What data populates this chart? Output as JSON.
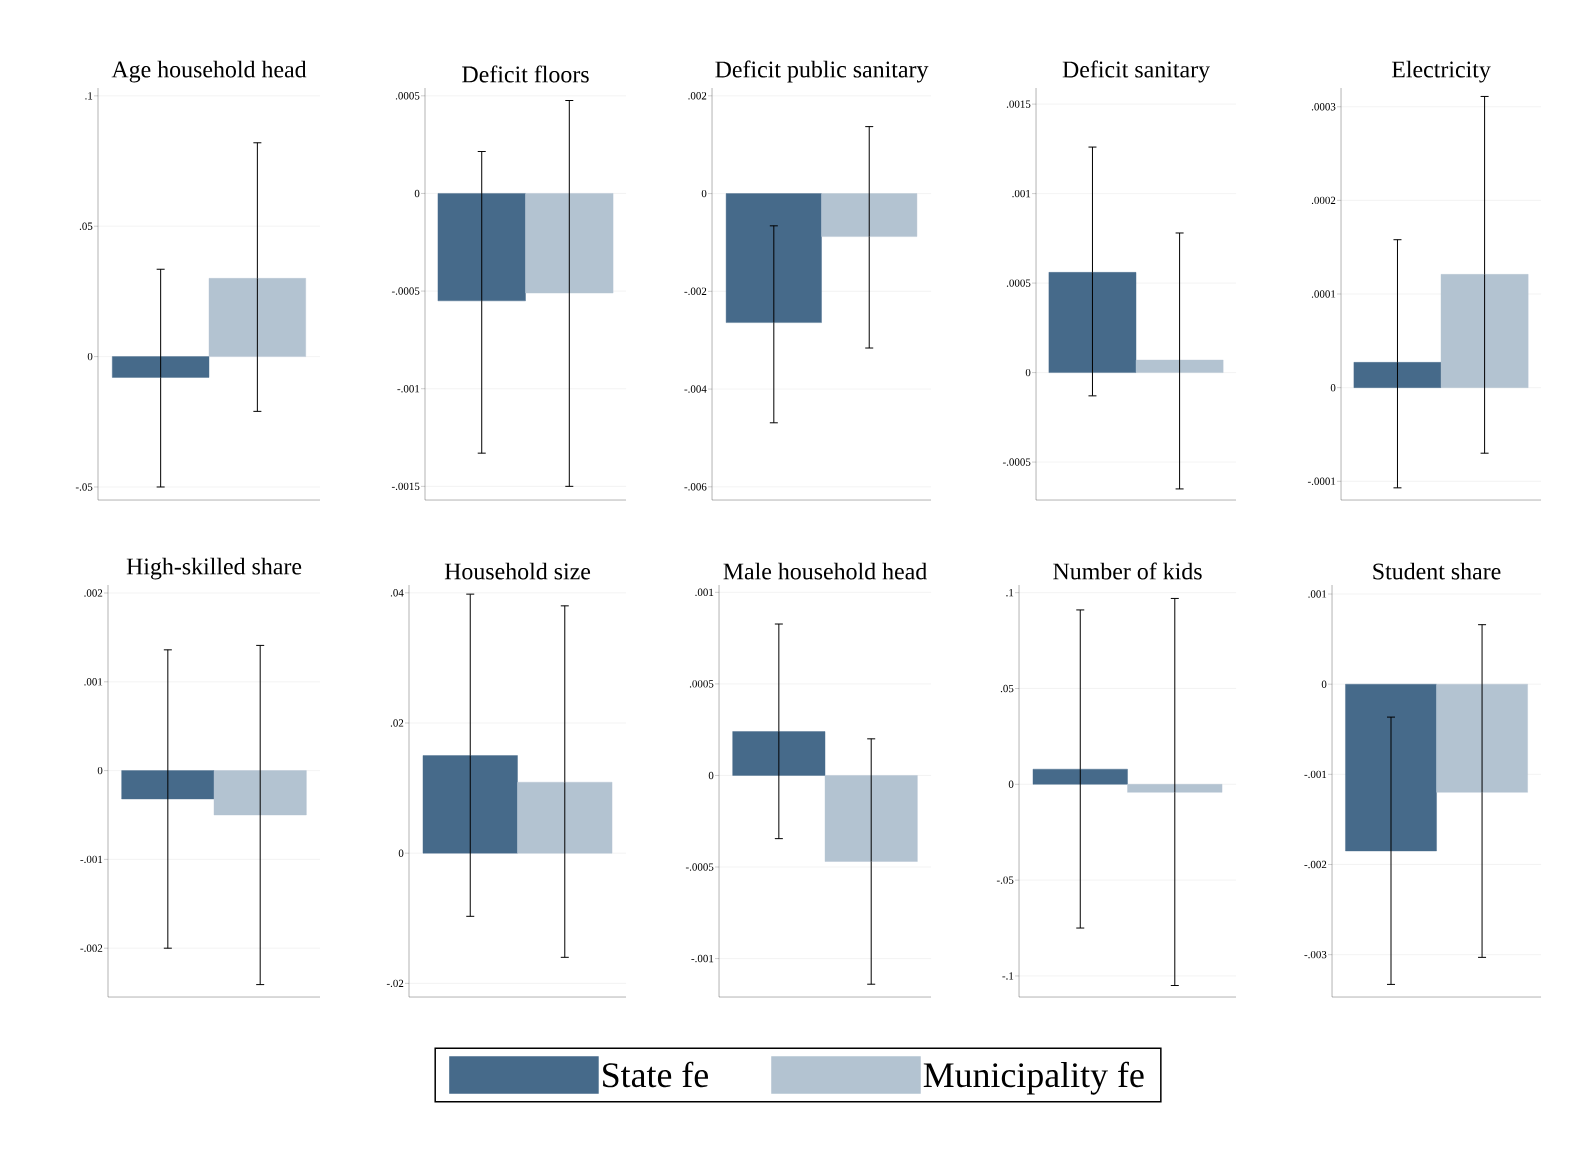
{
  "chart_data": [
    {
      "type": "bar",
      "title": "Age household head",
      "categories": [
        null
      ],
      "grid": "y",
      "legend": "bottom",
      "ylim": [
        -0.055,
        0.103
      ],
      "yticks": [
        {
          "value": -0.05,
          "label": "-.05"
        },
        0,
        {
          "value": 0.05,
          "label": ".05"
        },
        {
          "value": 0.1,
          "label": ".1"
        }
      ],
      "series": [
        {
          "name": "State fe",
          "color": "#466a8a",
          "values": [
            -0.008
          ],
          "errors": [
            [
              -0.05,
              0.0335
            ]
          ]
        },
        {
          "name": "Municipality fe",
          "color": "#b3c3d1",
          "values": [
            0.03
          ],
          "errors": [
            [
              -0.021,
              0.082
            ]
          ]
        }
      ]
    },
    {
      "type": "bar",
      "title": "Deficit floors",
      "categories": [
        null
      ],
      "grid": "y",
      "ylim": [
        -0.00157,
        0.00054
      ],
      "yticks": [
        {
          "value": -0.0015,
          "label": "-.0015"
        },
        {
          "value": -0.001,
          "label": "-.001"
        },
        {
          "value": -0.0005,
          "label": "-.0005"
        },
        0,
        {
          "value": 0.0005,
          "label": ".0005"
        }
      ],
      "series": [
        {
          "color": "#466a8a",
          "values": [
            -0.00055
          ],
          "errors": [
            [
              -0.00133,
              0.000215
            ]
          ]
        },
        {
          "color": "#b3c3d1",
          "values": [
            -0.00051
          ],
          "errors": [
            [
              -0.0015,
              0.000476
            ]
          ]
        }
      ]
    },
    {
      "type": "bar",
      "title": "Deficit public sanitary",
      "categories": [
        null
      ],
      "grid": "y",
      "ylim": [
        -0.00627,
        0.00216
      ],
      "yticks": [
        {
          "value": -0.006,
          "label": "-.006"
        },
        {
          "value": -0.004,
          "label": "-.004"
        },
        {
          "value": -0.002,
          "label": "-.002"
        },
        0,
        {
          "value": 0.002,
          "label": ".002"
        }
      ],
      "series": [
        {
          "color": "#466a8a",
          "values": [
            -0.00264
          ],
          "errors": [
            [
              -0.00469,
              -0.00066
            ]
          ]
        },
        {
          "color": "#b3c3d1",
          "values": [
            -0.00088
          ],
          "errors": [
            [
              -0.00316,
              0.00137
            ]
          ]
        }
      ]
    },
    {
      "type": "bar",
      "title": "Deficit sanitary",
      "categories": [
        null
      ],
      "grid": "y",
      "ylim": [
        -0.000712,
        0.00159
      ],
      "yticks": [
        {
          "value": -0.0005,
          "label": "-.0005"
        },
        0,
        {
          "value": 0.0005,
          "label": ".0005"
        },
        {
          "value": 0.001,
          "label": ".001"
        },
        {
          "value": 0.0015,
          "label": ".0015"
        }
      ],
      "series": [
        {
          "color": "#466a8a",
          "values": [
            0.00056
          ],
          "errors": [
            [
              -0.00013,
              0.00126
            ]
          ]
        },
        {
          "color": "#b3c3d1",
          "values": [
            7e-05
          ],
          "errors": [
            [
              -0.00065,
              0.00078
            ]
          ]
        }
      ]
    },
    {
      "type": "bar",
      "title": "Electricity",
      "categories": [
        null
      ],
      "grid": "y",
      "ylim": [
        -0.00012,
        0.00032
      ],
      "yticks": [
        {
          "value": -0.0001,
          "label": "-.0001"
        },
        0,
        {
          "value": 0.0001,
          "label": ".0001"
        },
        {
          "value": 0.0002,
          "label": ".0002"
        },
        {
          "value": 0.0003,
          "label": ".0003"
        }
      ],
      "series": [
        {
          "color": "#466a8a",
          "values": [
            2.7e-05
          ],
          "errors": [
            [
              -0.000107,
              0.000158
            ]
          ]
        },
        {
          "color": "#b3c3d1",
          "values": [
            0.000121
          ],
          "errors": [
            [
              -7e-05,
              0.000311
            ]
          ]
        }
      ]
    },
    {
      "type": "bar",
      "title": "High-skilled share",
      "categories": [
        null
      ],
      "grid": "y",
      "ylim": [
        -0.00255,
        0.00209
      ],
      "yticks": [
        {
          "value": -0.002,
          "label": "-.002"
        },
        {
          "value": -0.001,
          "label": "-.001"
        },
        0,
        {
          "value": 0.001,
          "label": ".001"
        },
        {
          "value": 0.002,
          "label": ".002"
        }
      ],
      "series": [
        {
          "color": "#466a8a",
          "values": [
            -0.00032
          ],
          "errors": [
            [
              -0.002,
              0.00136
            ]
          ]
        },
        {
          "color": "#b3c3d1",
          "values": [
            -0.0005
          ],
          "errors": [
            [
              -0.00241,
              0.00141
            ]
          ]
        }
      ]
    },
    {
      "type": "bar",
      "title": "Household size",
      "categories": [
        null
      ],
      "grid": "y",
      "ylim": [
        -0.0221,
        0.0412
      ],
      "yticks": [
        {
          "value": -0.02,
          "label": "-.02"
        },
        0,
        {
          "value": 0.02,
          "label": ".02"
        },
        {
          "value": 0.04,
          "label": ".04"
        }
      ],
      "series": [
        {
          "color": "#466a8a",
          "values": [
            0.015
          ],
          "errors": [
            [
              -0.0097,
              0.0398
            ]
          ]
        },
        {
          "color": "#b3c3d1",
          "values": [
            0.0109
          ],
          "errors": [
            [
              -0.016,
              0.038
            ]
          ]
        }
      ]
    },
    {
      "type": "bar",
      "title": "Male household head",
      "categories": [
        null
      ],
      "grid": "y",
      "ylim": [
        -0.00121,
        0.00104
      ],
      "yticks": [
        {
          "value": -0.001,
          "label": "-.001"
        },
        {
          "value": -0.0005,
          "label": "-.0005"
        },
        0,
        {
          "value": 0.0005,
          "label": ".0005"
        },
        {
          "value": 0.001,
          "label": ".001"
        }
      ],
      "series": [
        {
          "color": "#466a8a",
          "values": [
            0.00024
          ],
          "errors": [
            [
              -0.000345,
              0.000827
            ]
          ]
        },
        {
          "color": "#b3c3d1",
          "values": [
            -0.00047
          ],
          "errors": [
            [
              -0.00114,
              0.0002
            ]
          ]
        }
      ]
    },
    {
      "type": "bar",
      "title": "Number of kids",
      "categories": [
        null
      ],
      "grid": "y",
      "ylim": [
        -0.111,
        0.104
      ],
      "yticks": [
        {
          "value": -0.1,
          "label": "-.1"
        },
        {
          "value": -0.05,
          "label": "-.05"
        },
        0,
        {
          "value": 0.05,
          "label": ".05"
        },
        {
          "value": 0.1,
          "label": ".1"
        }
      ],
      "series": [
        {
          "color": "#466a8a",
          "values": [
            0.0079
          ],
          "errors": [
            [
              -0.075,
              0.091
            ]
          ]
        },
        {
          "color": "#b3c3d1",
          "values": [
            -0.0042
          ],
          "errors": [
            [
              -0.105,
              0.097
            ]
          ]
        }
      ]
    },
    {
      "type": "bar",
      "title": "Student share",
      "categories": [
        null
      ],
      "grid": "y",
      "ylim": [
        -0.00347,
        0.0011
      ],
      "yticks": [
        {
          "value": -0.003,
          "label": "-.003"
        },
        {
          "value": -0.002,
          "label": "-.002"
        },
        {
          "value": -0.001,
          "label": "-.001"
        },
        0,
        {
          "value": 0.001,
          "label": ".001"
        }
      ],
      "series": [
        {
          "color": "#466a8a",
          "values": [
            -0.00185
          ],
          "errors": [
            [
              -0.00333,
              -0.000365
            ]
          ]
        },
        {
          "color": "#b3c3d1",
          "values": [
            -0.0012
          ],
          "errors": [
            [
              -0.00303,
              0.00066
            ]
          ]
        }
      ]
    }
  ]
}
